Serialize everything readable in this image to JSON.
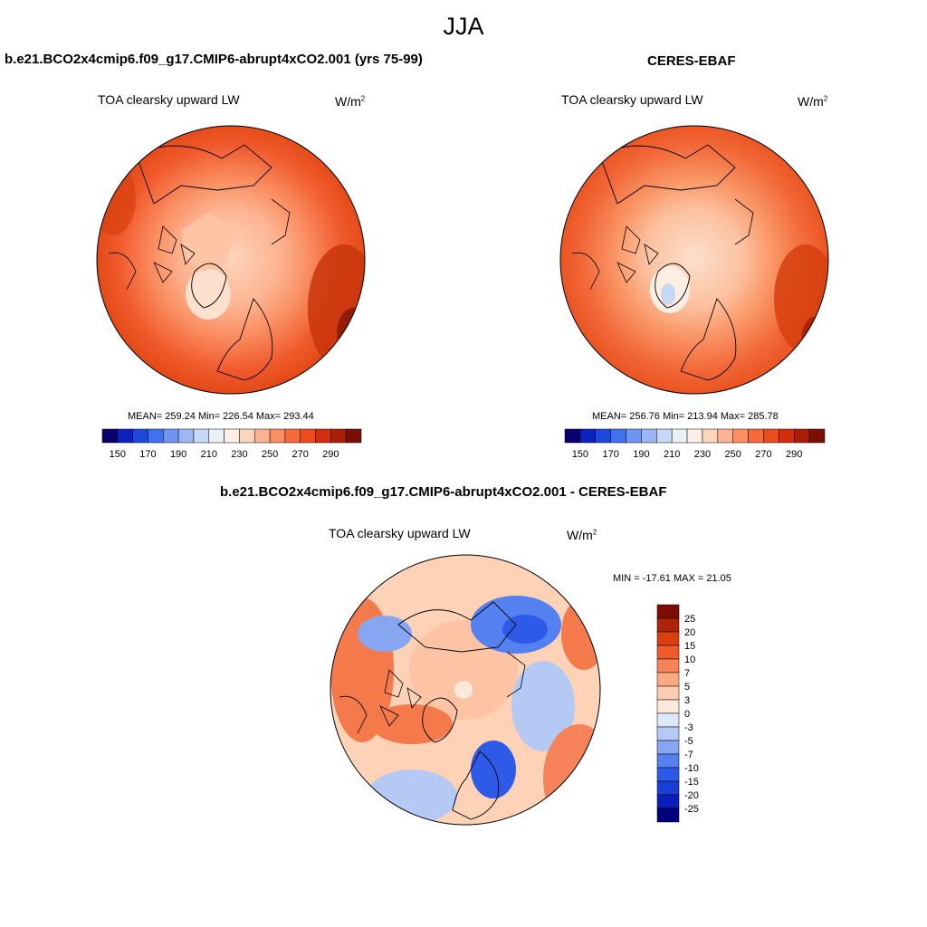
{
  "main_title": "JJA",
  "colors": {
    "abs_scale": [
      "#08006e",
      "#0b22c0",
      "#1d48e0",
      "#3f71f0",
      "#6f95f0",
      "#9cb7f3",
      "#c7d8f4",
      "#e9f0f8",
      "#fff0e6",
      "#fdd5bd",
      "#fcb391",
      "#fa8f62",
      "#f76b3b",
      "#ed4b1c",
      "#d42e0c",
      "#a81f05",
      "#7a0f02"
    ],
    "diff_scale": [
      "#00007e",
      "#0a1fb8",
      "#1a3dd6",
      "#2e5ae8",
      "#5580ef",
      "#86a6f2",
      "#b4c9f4",
      "#dde8f8",
      "#fde9dc",
      "#fdccb0",
      "#fbab84",
      "#f7835a",
      "#f05a2c",
      "#d93f0f",
      "#ad2407",
      "#7e0c02"
    ],
    "continent_line": "#000000"
  },
  "panels": {
    "model": {
      "title": "b.e21.BCO2x4cmip6.f09_g17.CMIP6-abrupt4xCO2.001 (yrs 75-99)",
      "variable": "TOA clearsky upward LW",
      "units_base": "W/m",
      "units_exp": "2",
      "stats": "MEAN= 259.24  Min= 226.54  Max= 293.44",
      "colorbar_ticks": [
        "150",
        "170",
        "190",
        "210",
        "230",
        "250",
        "270",
        "290"
      ]
    },
    "obs": {
      "title": "CERES-EBAF",
      "variable": "TOA clearsky upward LW",
      "units_base": "W/m",
      "units_exp": "2",
      "stats": "MEAN= 256.76  Min= 213.94  Max= 285.78",
      "colorbar_ticks": [
        "150",
        "170",
        "190",
        "210",
        "230",
        "250",
        "270",
        "290"
      ]
    },
    "diff": {
      "title": "b.e21.BCO2x4cmip6.f09_g17.CMIP6-abrupt4xCO2.001 - CERES-EBAF",
      "variable": "TOA clearsky upward LW",
      "units_base": "W/m",
      "units_exp": "2",
      "stats": "MIN = -17.61 MAX =  21.05",
      "colorbar_ticks": [
        "25",
        "20",
        "15",
        "10",
        "7",
        "5",
        "3",
        "0",
        "-3",
        "-5",
        "-7",
        "-10",
        "-15",
        "-20",
        "-25"
      ]
    }
  }
}
